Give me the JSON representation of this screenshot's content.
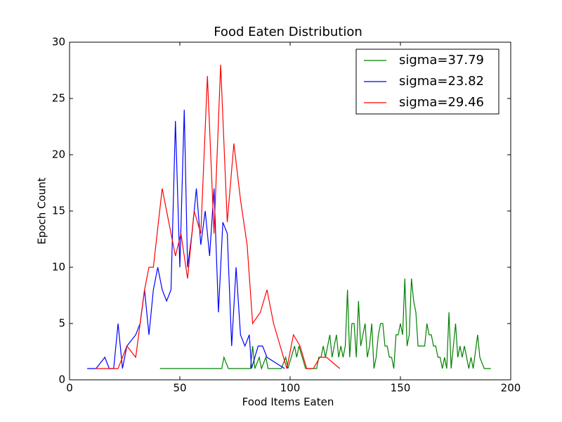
{
  "chart_data": {
    "type": "line",
    "title": "Food Eaten Distribution",
    "x_label": "Food Items Eaten",
    "y_label": "Epoch Count",
    "xlim": [
      0,
      200
    ],
    "ylim": [
      0,
      30
    ],
    "xticks": [
      0,
      50,
      100,
      150,
      200
    ],
    "yticks": [
      0,
      5,
      10,
      15,
      20,
      25,
      30
    ],
    "legend": "upper right",
    "series": [
      {
        "name": "sigma=37.79",
        "color": "#008000",
        "x": [
          41,
          69,
          70,
          72,
          82,
          83,
          84,
          86,
          87,
          89,
          90,
          96,
          98,
          99,
          102,
          103,
          104,
          107,
          112,
          113,
          114,
          115,
          116,
          117,
          118,
          119,
          120,
          121,
          122,
          123,
          124,
          125,
          126,
          127,
          128,
          129,
          130,
          131,
          132,
          133,
          134,
          135,
          136,
          137,
          138,
          139,
          140,
          141,
          142,
          143,
          144,
          145,
          146,
          147,
          148,
          149,
          150,
          151,
          152,
          153,
          154,
          155,
          156,
          157,
          158,
          160,
          161,
          162,
          163,
          164,
          165,
          166,
          167,
          168,
          169,
          170,
          171,
          172,
          173,
          174,
          175,
          176,
          177,
          178,
          179,
          180,
          181,
          182,
          183,
          185,
          186,
          188,
          191
        ],
        "values": [
          1,
          1,
          2,
          1,
          1,
          3,
          1,
          2,
          1,
          2,
          1,
          1,
          2,
          1,
          3,
          2,
          3,
          1,
          1,
          2,
          2,
          3,
          2,
          3,
          4,
          2,
          3,
          4,
          2,
          3,
          2,
          3,
          8,
          2,
          5,
          5,
          2,
          7,
          3,
          4,
          5,
          2,
          3,
          5,
          1,
          2,
          4,
          5,
          5,
          3,
          3,
          2,
          2,
          1,
          4,
          4,
          5,
          4,
          9,
          3,
          4,
          9,
          7,
          6,
          3,
          3,
          3,
          5,
          4,
          4,
          3,
          3,
          2,
          2,
          1,
          2,
          1,
          6,
          1,
          3,
          5,
          2,
          3,
          2,
          3,
          2,
          1,
          2,
          1,
          4,
          2,
          1,
          1
        ]
      },
      {
        "name": "sigma=23.82",
        "color": "#0000ff",
        "x": [
          8,
          12,
          16,
          18,
          20,
          22,
          24,
          26,
          30,
          32,
          34,
          36,
          38,
          40,
          42,
          44,
          46,
          48,
          50,
          52,
          53.5,
          55.5,
          57.5,
          59.5,
          61.5,
          63.5,
          65.5,
          67.5,
          69.5,
          71.5,
          73.5,
          75.5,
          77.5,
          79.5,
          81.5,
          82.5,
          84,
          85.5,
          87.5,
          89.5,
          97.5
        ],
        "values": [
          1,
          1,
          2,
          1,
          1,
          5,
          1,
          3,
          4,
          5,
          8,
          4,
          8,
          10,
          8,
          7,
          8,
          23,
          10,
          24,
          10,
          13,
          17,
          12,
          15,
          11,
          17,
          6,
          14,
          13,
          3,
          10,
          4,
          3,
          4,
          1,
          2,
          3,
          3,
          2,
          1
        ]
      },
      {
        "name": "sigma=29.46",
        "color": "#ff0000",
        "x": [
          12,
          20,
          22,
          26,
          30,
          32,
          34,
          36,
          38,
          42,
          48,
          50.5,
          53.5,
          56.5,
          59.5,
          62.5,
          65.5,
          68.5,
          71.5,
          74.5,
          77.5,
          80.5,
          83,
          86.5,
          89.5,
          92.5,
          98.5,
          101.5,
          104.5,
          107.5,
          110.5,
          113.5,
          116.5,
          122.5
        ],
        "values": [
          1,
          1,
          1,
          3,
          2,
          5,
          8,
          10,
          10,
          17,
          11,
          13,
          9,
          15,
          13,
          27,
          13,
          28,
          14,
          21,
          16,
          12,
          5,
          6,
          8,
          5,
          1,
          4,
          3,
          1,
          1,
          2,
          2,
          1
        ]
      }
    ]
  }
}
